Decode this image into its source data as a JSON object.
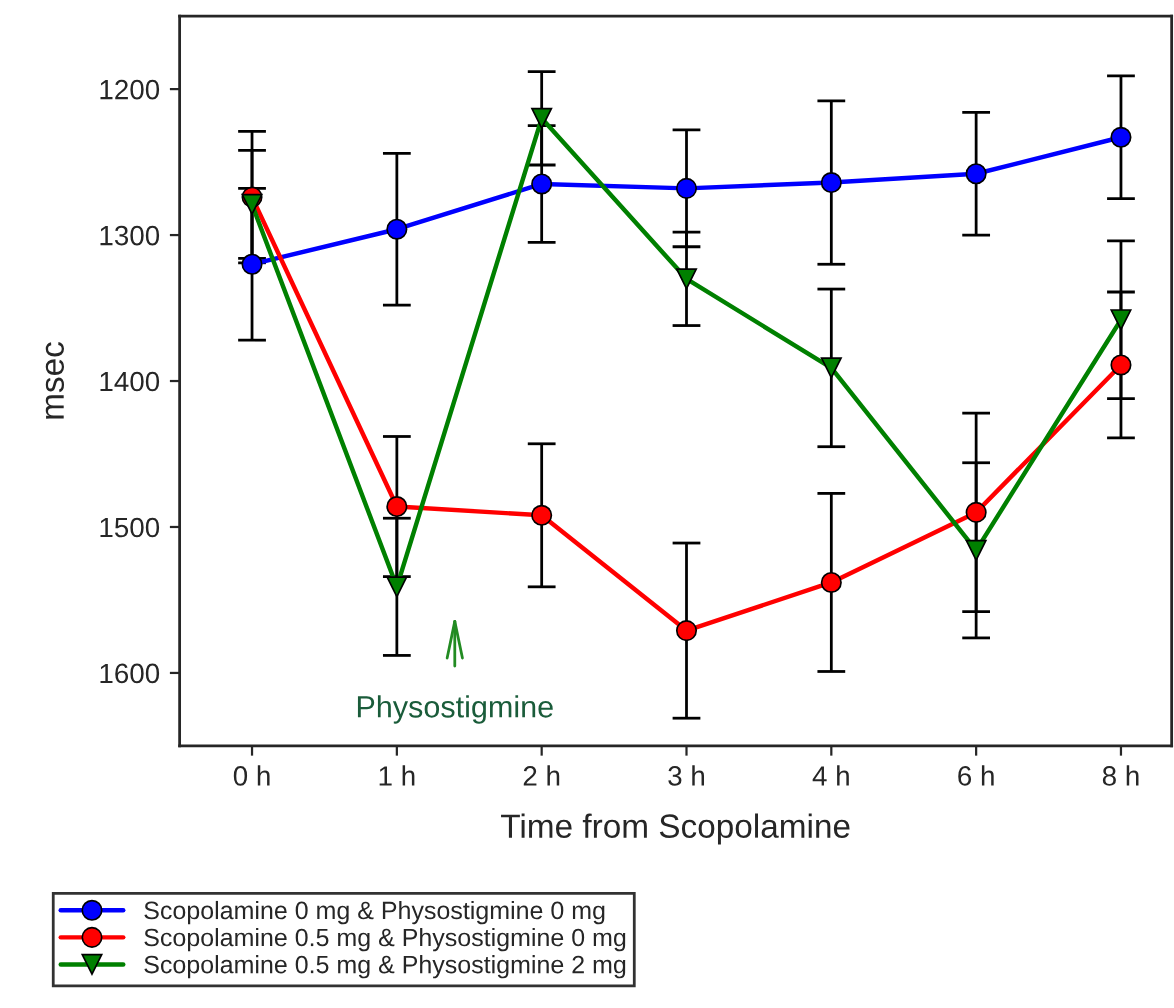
{
  "chart_data": {
    "type": "line",
    "xlabel": "Time from Scopolamine",
    "ylabel": "msec",
    "categories": [
      "0 h",
      "1 h",
      "2 h",
      "3 h",
      "4 h",
      "6 h",
      "8 h"
    ],
    "ylim": [
      1650,
      1150
    ],
    "yticks": [
      1200,
      1300,
      1400,
      1500,
      1600
    ],
    "grid": false,
    "legend": "bottom",
    "annotations": [
      "Physostigmine"
    ],
    "series": [
      {
        "name": "Scopolamine 0 mg & Physostigmine 0 mg",
        "color": "#0000ff",
        "marker": "circle",
        "values": [
          1320,
          1296,
          1265,
          1268,
          1264,
          1258,
          1233
        ],
        "errors": [
          52,
          52,
          40,
          40,
          56,
          42,
          42
        ]
      },
      {
        "name": "Scopolamine 0.5 mg & Physostigmine 0 mg",
        "color": "#ff0000",
        "marker": "circle",
        "values": [
          1274,
          1486,
          1492,
          1571,
          1538,
          1490,
          1389
        ],
        "errors": [
          45,
          48,
          49,
          60,
          61,
          68,
          50
        ]
      },
      {
        "name": "Scopolamine 0.5 mg & Physostigmine 2 mg",
        "color": "#008000",
        "marker": "triangle",
        "values": [
          1279,
          1541,
          1220,
          1330,
          1391,
          1516,
          1358
        ],
        "errors": [
          37,
          47,
          32,
          32,
          54,
          60,
          54
        ]
      }
    ]
  }
}
